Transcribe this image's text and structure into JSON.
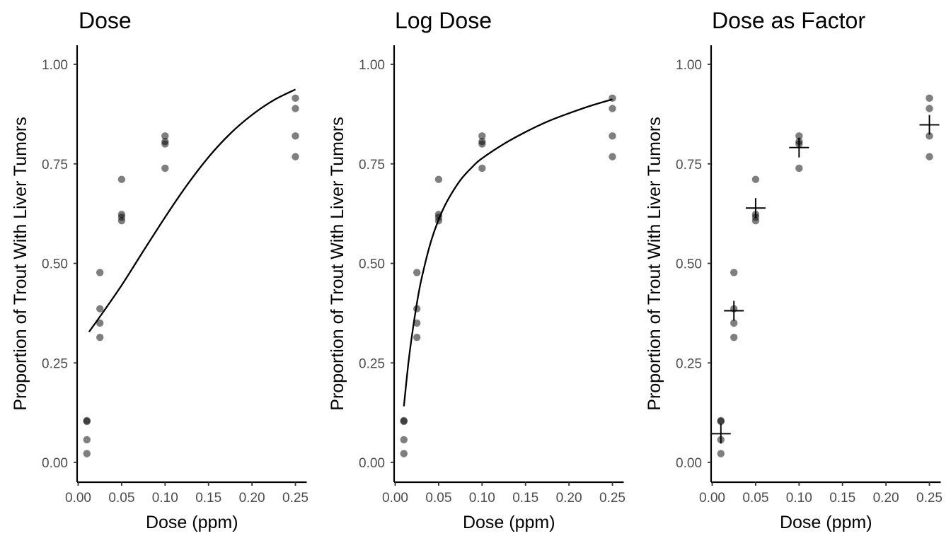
{
  "chart_data": [
    {
      "type": "scatter",
      "title": "Dose",
      "xlabel": "Dose (ppm)",
      "ylabel": "Proportion of Trout With Liver Tumors",
      "xlim": [
        0,
        0.25
      ],
      "ylim": [
        0,
        1
      ],
      "xticks": [
        "0.00",
        "0.05",
        "0.10",
        "0.15",
        "0.20",
        "0.25"
      ],
      "yticks": [
        "0.00",
        "0.25",
        "0.50",
        "0.75",
        "1.00"
      ],
      "grid": false,
      "series": [
        {
          "type": "scatter",
          "x": [
            0.01,
            0.01,
            0.01,
            0.01,
            0.025,
            0.025,
            0.025,
            0.025,
            0.05,
            0.05,
            0.05,
            0.05,
            0.1,
            0.1,
            0.1,
            0.1,
            0.25,
            0.25,
            0.25,
            0.25
          ],
          "y": [
            0.103,
            0.105,
            0.057,
            0.022,
            0.477,
            0.386,
            0.35,
            0.314,
            0.711,
            0.623,
            0.616,
            0.607,
            0.82,
            0.806,
            0.8,
            0.739,
            0.915,
            0.889,
            0.82,
            0.768
          ]
        },
        {
          "type": "line",
          "x": [
            0.0125,
            0.025,
            0.05,
            0.075,
            0.1,
            0.125,
            0.15,
            0.175,
            0.2,
            0.225,
            0.25
          ],
          "y": [
            0.328,
            0.366,
            0.445,
            0.531,
            0.616,
            0.696,
            0.767,
            0.826,
            0.873,
            0.91,
            0.937
          ]
        }
      ]
    },
    {
      "type": "scatter",
      "title": "Log Dose",
      "xlabel": "Dose (ppm)",
      "ylabel": "Proportion of Trout With Liver Tumors",
      "xlim": [
        0,
        0.25
      ],
      "ylim": [
        0,
        1
      ],
      "xticks": [
        "0.00",
        "0.05",
        "0.10",
        "0.15",
        "0.20",
        "0.25"
      ],
      "yticks": [
        "0.00",
        "0.25",
        "0.50",
        "0.75",
        "1.00"
      ],
      "grid": false,
      "series": [
        {
          "type": "scatter",
          "x": [
            0.01,
            0.01,
            0.01,
            0.01,
            0.025,
            0.025,
            0.025,
            0.025,
            0.05,
            0.05,
            0.05,
            0.05,
            0.1,
            0.1,
            0.1,
            0.1,
            0.25,
            0.25,
            0.25,
            0.25
          ],
          "y": [
            0.103,
            0.105,
            0.057,
            0.022,
            0.477,
            0.386,
            0.35,
            0.314,
            0.711,
            0.623,
            0.616,
            0.607,
            0.82,
            0.806,
            0.8,
            0.739,
            0.915,
            0.889,
            0.82,
            0.768
          ]
        },
        {
          "type": "line",
          "x": [
            0.01,
            0.015,
            0.02,
            0.025,
            0.03,
            0.04,
            0.05,
            0.06,
            0.075,
            0.09,
            0.1,
            0.125,
            0.15,
            0.175,
            0.2,
            0.225,
            0.25
          ],
          "y": [
            0.141,
            0.246,
            0.33,
            0.4,
            0.458,
            0.546,
            0.61,
            0.657,
            0.709,
            0.745,
            0.764,
            0.8,
            0.83,
            0.856,
            0.877,
            0.896,
            0.912
          ]
        }
      ]
    },
    {
      "type": "scatter",
      "title": "Dose as Factor",
      "xlabel": "Dose (ppm)",
      "ylabel": "Proportion of Trout With Liver Tumors",
      "xlim": [
        0,
        0.25
      ],
      "ylim": [
        0,
        1
      ],
      "xticks": [
        "0.00",
        "0.05",
        "0.10",
        "0.15",
        "0.20",
        "0.25"
      ],
      "yticks": [
        "0.00",
        "0.25",
        "0.50",
        "0.75",
        "1.00"
      ],
      "grid": false,
      "series": [
        {
          "type": "scatter",
          "x": [
            0.01,
            0.01,
            0.01,
            0.01,
            0.025,
            0.025,
            0.025,
            0.025,
            0.05,
            0.05,
            0.05,
            0.05,
            0.1,
            0.1,
            0.1,
            0.1,
            0.25,
            0.25,
            0.25,
            0.25
          ],
          "y": [
            0.103,
            0.105,
            0.057,
            0.022,
            0.477,
            0.386,
            0.35,
            0.314,
            0.711,
            0.623,
            0.616,
            0.607,
            0.82,
            0.806,
            0.8,
            0.739,
            0.915,
            0.889,
            0.82,
            0.768
          ]
        },
        {
          "type": "cross",
          "x": [
            0.01,
            0.025,
            0.05,
            0.1,
            0.25
          ],
          "y": [
            0.072,
            0.381,
            0.639,
            0.791,
            0.848
          ]
        }
      ]
    }
  ]
}
